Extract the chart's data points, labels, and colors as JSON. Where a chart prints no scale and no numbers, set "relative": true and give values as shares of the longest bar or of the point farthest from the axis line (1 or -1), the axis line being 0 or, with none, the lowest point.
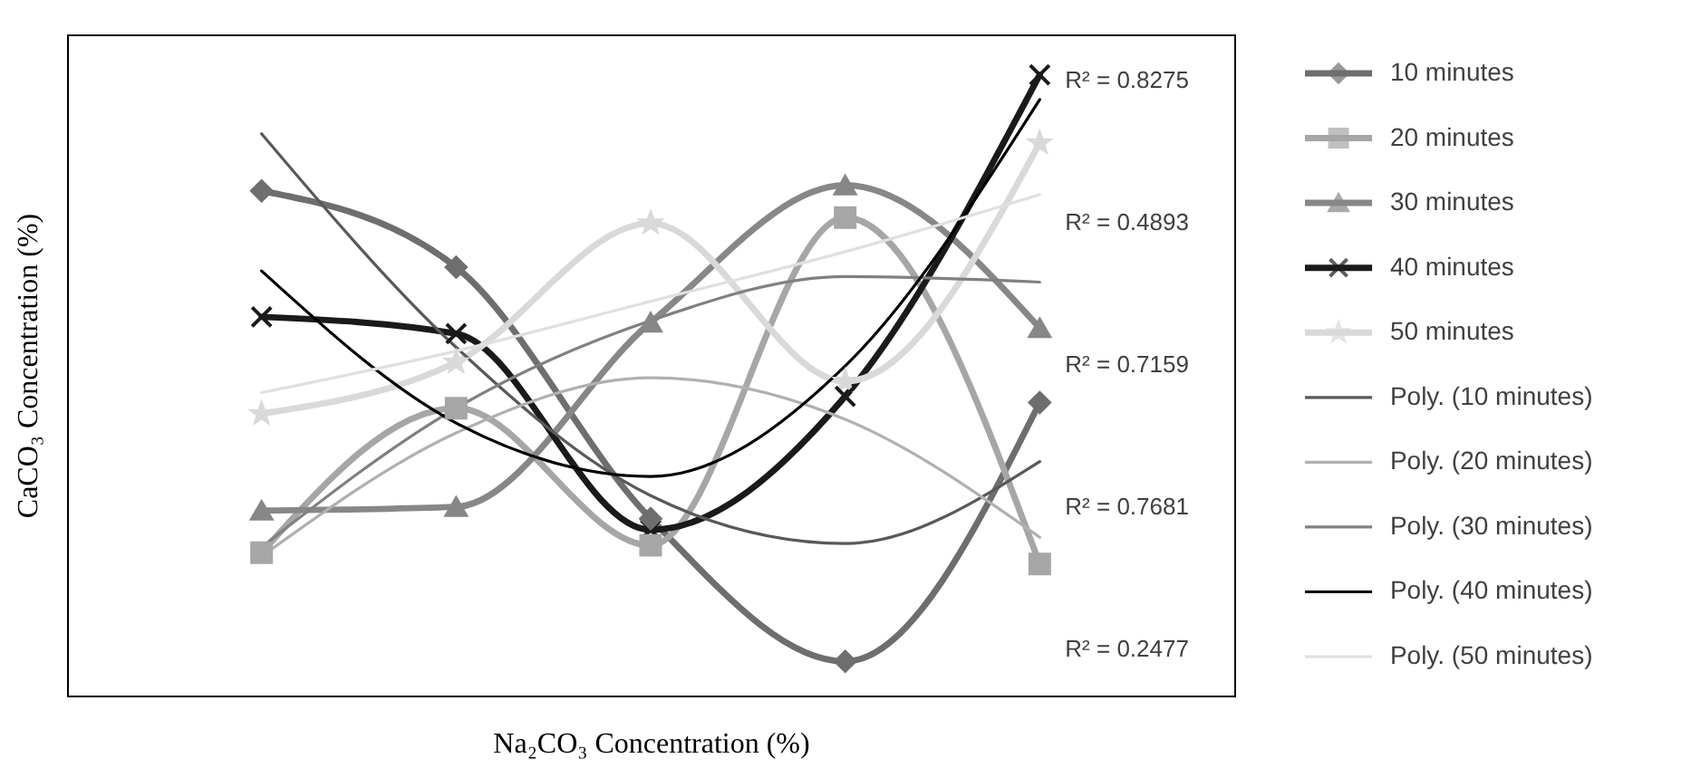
{
  "chart_data": {
    "type": "line",
    "relative": true,
    "xlabel": "Na₂CO₃ Concentration (%)",
    "ylabel": "CaCO₃ Concentration (%)",
    "categories": [
      null,
      null,
      null,
      null,
      null
    ],
    "tick_labels": false,
    "grid": false,
    "legend": "right",
    "series": [
      {
        "name": "10 minutes",
        "color": "#6e6e6e",
        "marker": "diamond",
        "values": [
          0.813,
          0.69,
          0.285,
          0.055,
          0.472
        ]
      },
      {
        "name": "20 minutes",
        "color": "#a6a6a6",
        "marker": "square",
        "values": [
          0.23,
          0.463,
          0.242,
          0.77,
          0.212
        ]
      },
      {
        "name": "30 minutes",
        "color": "#878787",
        "marker": "triangle",
        "values": [
          0.298,
          0.304,
          0.601,
          0.822,
          0.592
        ]
      },
      {
        "name": "40 minutes",
        "color": "#1a1a1a",
        "marker": "cross",
        "values": [
          0.61,
          0.583,
          0.267,
          0.482,
          1.0
        ]
      },
      {
        "name": "50 minutes",
        "color": "#d9d9d9",
        "marker": "star",
        "values": [
          0.454,
          0.537,
          0.761,
          0.506,
          0.89
        ]
      },
      {
        "name": "Poly. (10 minutes)",
        "color": "#595959",
        "marker": "none",
        "values": [
          0.905,
          0.561,
          0.322,
          0.245,
          0.377
        ]
      },
      {
        "name": "Poly. (20 minutes)",
        "color": "#b0b0b0",
        "marker": "none",
        "values": [
          0.224,
          0.423,
          0.512,
          0.445,
          0.255
        ]
      },
      {
        "name": "Poly. (30 minutes)",
        "color": "#808080",
        "marker": "none",
        "values": [
          0.239,
          0.463,
          0.604,
          0.675,
          0.666
        ]
      },
      {
        "name": "Poly. (40 minutes)",
        "color": "#000000",
        "marker": "none",
        "values": [
          0.684,
          0.439,
          0.353,
          0.531,
          0.96
        ]
      },
      {
        "name": "Poly. (50 minutes)",
        "color": "#e0e0e0",
        "marker": "none",
        "values": [
          0.488,
          0.555,
          0.635,
          0.715,
          0.807
        ]
      }
    ],
    "annotations": [
      "R² = 0.8275",
      "R² = 0.4893",
      "R² = 0.7159",
      "R² = 0.7681",
      "R² = 0.2477"
    ]
  }
}
